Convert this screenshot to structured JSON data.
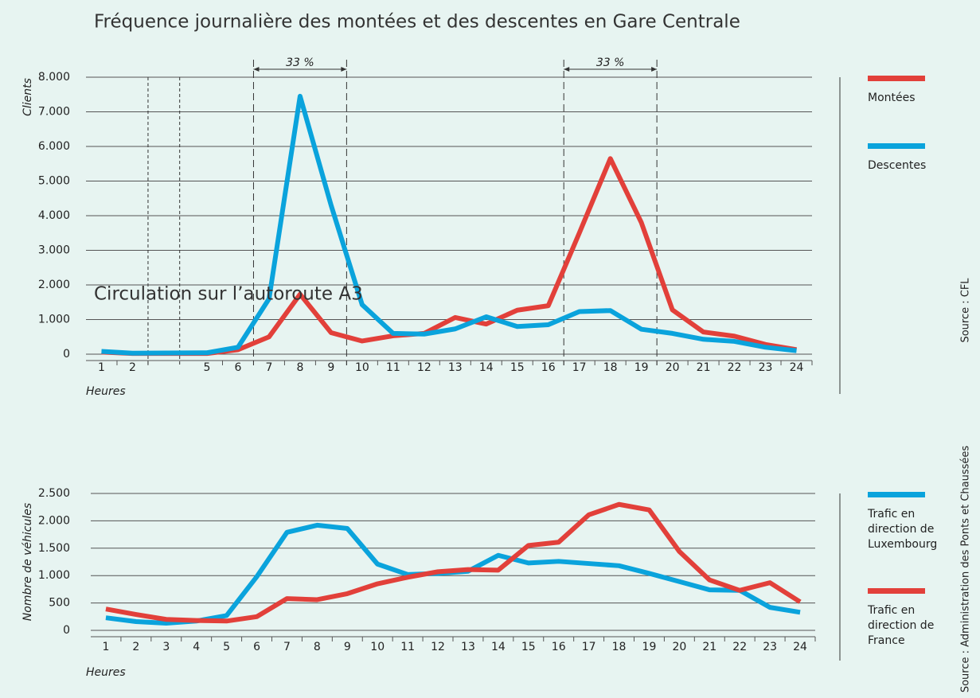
{
  "chart_data": [
    {
      "type": "line",
      "title": "Fréquence journalière des montées et des descentes en Gare Centrale",
      "ylabel": "Clients",
      "xlabel": "Heures",
      "source": "Source : CFL",
      "x": [
        1,
        2,
        5,
        6,
        7,
        8,
        9,
        10,
        11,
        12,
        13,
        14,
        15,
        16,
        17,
        18,
        19,
        20,
        21,
        22,
        23,
        24
      ],
      "xlim": [
        0.5,
        24.5
      ],
      "xbreak": [
        2,
        5
      ],
      "ylim": [
        0,
        8000
      ],
      "yticks": [
        0,
        {
          "value": 1000,
          "label": "1.000"
        },
        {
          "value": 2000,
          "label": "2.000"
        },
        {
          "value": 3000,
          "label": "3.000"
        },
        {
          "value": 4000,
          "label": "4.000"
        },
        {
          "value": 5000,
          "label": "5.000"
        },
        {
          "value": 6000,
          "label": "6.000"
        },
        {
          "value": 7000,
          "label": "7.000"
        },
        {
          "value": 8000,
          "label": "8.000"
        }
      ],
      "grid": true,
      "legend": "right",
      "annotations": [
        {
          "text": "33 %",
          "start": 6.5,
          "end": 9.5
        },
        {
          "text": "33 %",
          "start": 16.5,
          "end": 19.5
        }
      ],
      "series": [
        {
          "name": "Montées",
          "color": "#e2403a",
          "values": [
            60,
            20,
            20,
            130,
            500,
            1730,
            620,
            380,
            530,
            600,
            1060,
            870,
            1270,
            1400,
            3500,
            5650,
            3800,
            1280,
            640,
            520,
            280,
            130
          ]
        },
        {
          "name": "Descentes",
          "color": "#0aa3dc",
          "values": [
            80,
            30,
            40,
            200,
            1600,
            7450,
            4300,
            1430,
            600,
            580,
            730,
            1080,
            800,
            850,
            1230,
            1260,
            720,
            600,
            430,
            370,
            200,
            100
          ]
        }
      ]
    },
    {
      "type": "line",
      "title": "Circulation sur l’autoroute A3",
      "ylabel": "Nombre de véhicules",
      "xlabel": "Heures",
      "source": "Source : Administration des Ponts et Chaussées",
      "x": [
        1,
        2,
        3,
        4,
        5,
        6,
        7,
        8,
        9,
        10,
        11,
        12,
        13,
        14,
        15,
        16,
        17,
        18,
        19,
        20,
        21,
        22,
        23,
        24
      ],
      "xlim": [
        0.5,
        24.5
      ],
      "ylim": [
        0,
        2500
      ],
      "yticks": [
        0,
        500,
        {
          "value": 1000,
          "label": "1.000"
        },
        {
          "value": 1500,
          "label": "1.500"
        },
        {
          "value": 2000,
          "label": "2.000"
        },
        {
          "value": 2500,
          "label": "2.500"
        }
      ],
      "grid": true,
      "legend": "right",
      "series": [
        {
          "name": "Trafic en direction de Luxembourg",
          "color": "#0aa3dc",
          "values": [
            230,
            160,
            130,
            170,
            270,
            980,
            1790,
            1920,
            1860,
            1210,
            1020,
            1040,
            1080,
            1370,
            1230,
            1260,
            1220,
            1180,
            1040,
            890,
            740,
            730,
            420,
            330
          ]
        },
        {
          "name": "Trafic en direction de France",
          "color": "#e2403a",
          "values": [
            390,
            290,
            200,
            180,
            170,
            250,
            580,
            560,
            670,
            850,
            970,
            1070,
            1110,
            1100,
            1550,
            1610,
            2110,
            2300,
            2200,
            1440,
            920,
            730,
            870,
            520
          ]
        }
      ]
    }
  ]
}
